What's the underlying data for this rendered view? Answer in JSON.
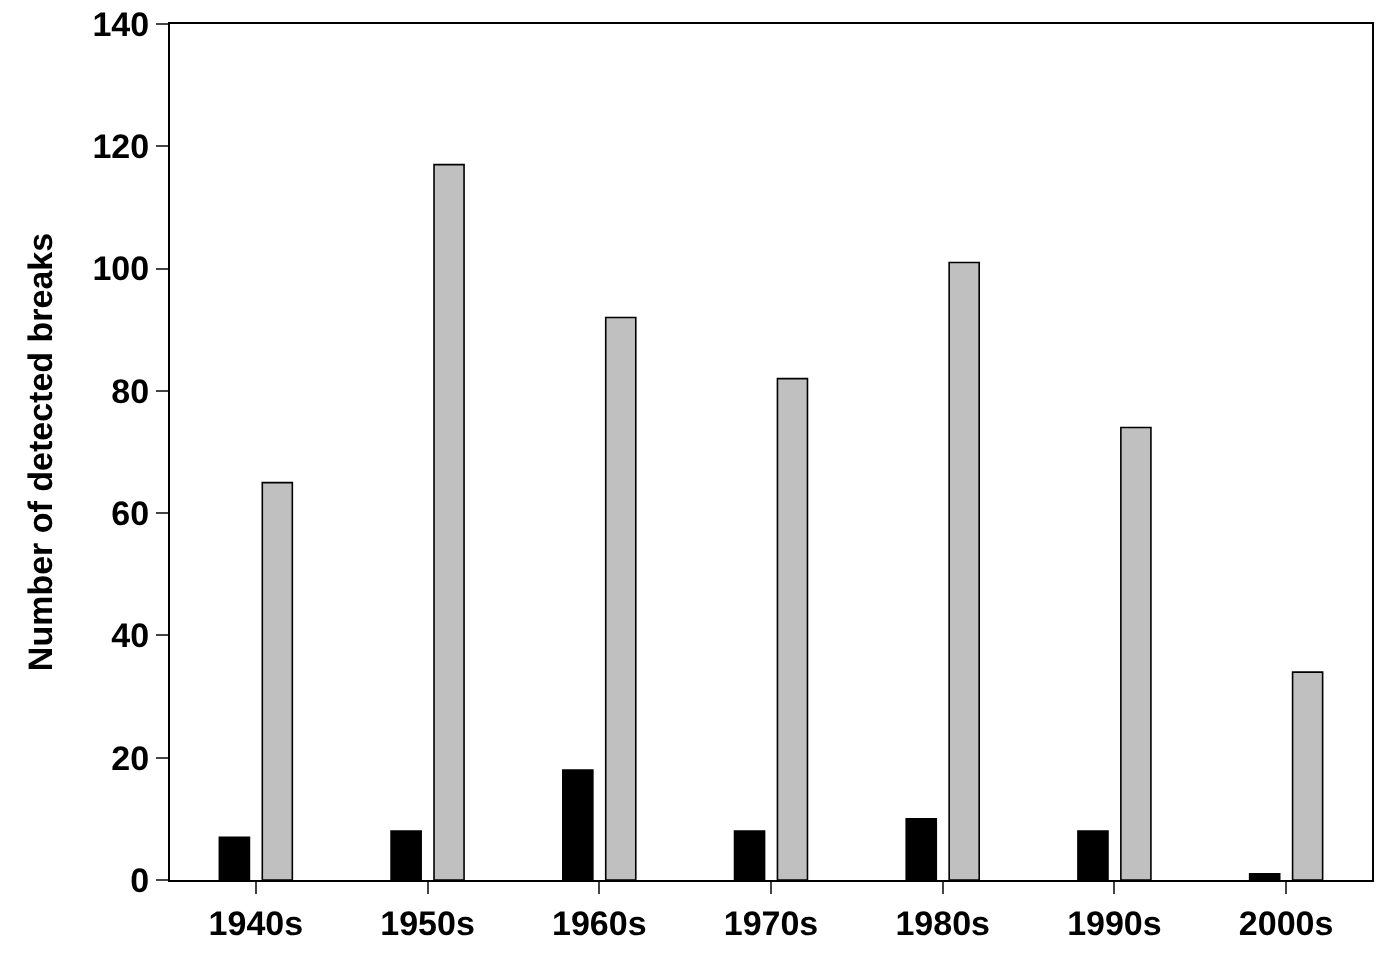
{
  "chart_data": {
    "type": "bar",
    "ylabel": "Number of detected breaks",
    "categories": [
      "1940s",
      "1950s",
      "1960s",
      "1970s",
      "1980s",
      "1990s",
      "2000s"
    ],
    "series": [
      {
        "color": "#000000",
        "values": [
          7,
          8,
          18,
          8,
          10,
          8,
          1
        ]
      },
      {
        "color": "#c0c0c0",
        "values": [
          65,
          117,
          92,
          82,
          101,
          74,
          34
        ]
      }
    ],
    "ylim": [
      0,
      140
    ],
    "yticks": [
      0,
      20,
      40,
      60,
      80,
      100,
      120,
      140
    ],
    "legend": false
  }
}
